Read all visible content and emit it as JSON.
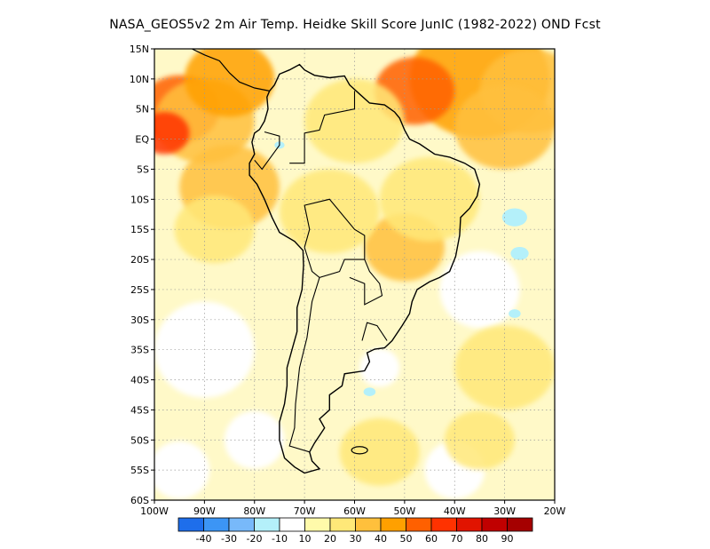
{
  "title": "NASA_GEOS5v2  2m Air Temp. Heidke Skill Score JunIC (1982-2022) OND Fcst",
  "map": {
    "lat_labels": [
      "15N",
      "10N",
      "5N",
      "EQ",
      "5S",
      "10S",
      "15S",
      "20S",
      "25S",
      "30S",
      "35S",
      "40S",
      "45S",
      "50S",
      "55S",
      "60S"
    ],
    "lat_values": [
      15,
      10,
      5,
      0,
      -5,
      -10,
      -15,
      -20,
      -25,
      -30,
      -35,
      -40,
      -45,
      -50,
      -55,
      -60
    ],
    "lon_labels": [
      "100W",
      "90W",
      "80W",
      "70W",
      "60W",
      "50W",
      "40W",
      "30W",
      "20W"
    ],
    "lon_values": [
      -100,
      -90,
      -80,
      -70,
      -60,
      -50,
      -40,
      -30,
      -20
    ],
    "lon_range": [
      -100,
      -20
    ],
    "lat_range": [
      -60,
      15
    ],
    "grid": true
  },
  "colorbar": {
    "labels": [
      "-40",
      "-30",
      "-20",
      "-10",
      "10",
      "20",
      "30",
      "40",
      "50",
      "60",
      "70",
      "80",
      "90"
    ],
    "colors": [
      "#1e6eeb",
      "#3c95f5",
      "#78b9fa",
      "#b4f0fa",
      "#ffffff",
      "#fffaaa",
      "#ffe878",
      "#ffc03c",
      "#ffa000",
      "#ff6000",
      "#ff3200",
      "#e11400",
      "#c00000",
      "#a50000"
    ]
  },
  "skill_regions": [
    {
      "lon": -95,
      "lat": 5,
      "r": 8,
      "level": 4
    },
    {
      "lon": -90,
      "lat": 3,
      "r": 10,
      "level": 2
    },
    {
      "lon": -98,
      "lat": 1,
      "r": 5,
      "level": 5
    },
    {
      "lon": -85,
      "lat": 10,
      "r": 9,
      "level": 3
    },
    {
      "lon": -85,
      "lat": -8,
      "r": 10,
      "level": 2
    },
    {
      "lon": -88,
      "lat": -15,
      "r": 8,
      "level": 1
    },
    {
      "lon": -35,
      "lat": 10,
      "r": 14,
      "level": 3
    },
    {
      "lon": -48,
      "lat": 8,
      "r": 8,
      "level": 4
    },
    {
      "lon": -25,
      "lat": 8,
      "r": 10,
      "level": 2
    },
    {
      "lon": -30,
      "lat": 2,
      "r": 10,
      "level": 2
    },
    {
      "lon": -60,
      "lat": 3,
      "r": 10,
      "level": 1
    },
    {
      "lon": -50,
      "lat": -18,
      "r": 8,
      "level": 2
    },
    {
      "lon": -45,
      "lat": -10,
      "r": 10,
      "level": 1
    },
    {
      "lon": -65,
      "lat": -12,
      "r": 10,
      "level": 1
    },
    {
      "lon": -30,
      "lat": -38,
      "r": 10,
      "level": 1
    },
    {
      "lon": -55,
      "lat": -52,
      "r": 8,
      "level": 1
    },
    {
      "lon": -35,
      "lat": -50,
      "r": 7,
      "level": 1
    }
  ],
  "negative_regions": [
    {
      "lon": -28,
      "lat": -13,
      "r": 2.5
    },
    {
      "lon": -27,
      "lat": -19,
      "r": 1.8
    },
    {
      "lon": -28,
      "lat": -29,
      "r": 1.2
    },
    {
      "lon": -57,
      "lat": -42,
      "r": 1.2
    },
    {
      "lon": -75,
      "lat": -1,
      "r": 1.0
    }
  ]
}
